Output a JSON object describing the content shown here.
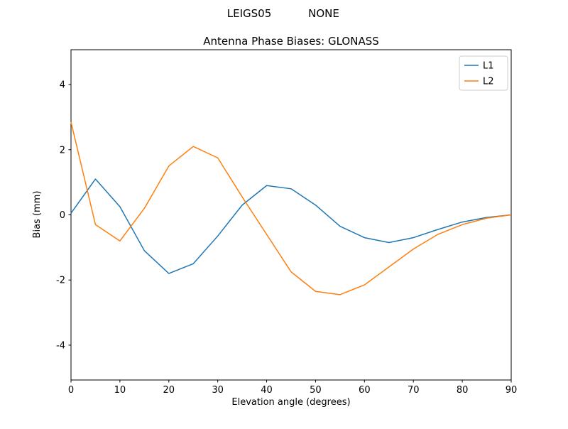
{
  "chart_data": {
    "type": "line",
    "suptitle_left": "LEIGS05",
    "suptitle_right": "NONE",
    "title": "Antenna Phase Biases: GLONASS",
    "xlabel": "Elevation angle (degrees)",
    "ylabel": "Bias (mm)",
    "xlim": [
      0,
      90
    ],
    "ylim": [
      -5.07,
      5.07
    ],
    "xticks": [
      0,
      10,
      20,
      30,
      40,
      50,
      60,
      70,
      80,
      90
    ],
    "yticks": [
      -4,
      -2,
      0,
      2,
      4
    ],
    "grid": false,
    "legend_position": "upper right",
    "x": [
      0,
      5,
      10,
      15,
      20,
      25,
      30,
      35,
      40,
      45,
      50,
      55,
      60,
      65,
      70,
      75,
      80,
      85,
      90
    ],
    "series": [
      {
        "name": "L1",
        "color": "#1f77b4",
        "values": [
          0.05,
          1.1,
          0.25,
          -1.1,
          -1.8,
          -1.5,
          -0.65,
          0.3,
          0.9,
          0.8,
          0.3,
          -0.35,
          -0.7,
          -0.85,
          -0.7,
          -0.45,
          -0.22,
          -0.08,
          0.0
        ]
      },
      {
        "name": "L2",
        "color": "#ff7f0e",
        "values": [
          2.85,
          -0.3,
          -0.8,
          0.2,
          1.5,
          2.1,
          1.75,
          0.55,
          -0.6,
          -1.75,
          -2.35,
          -2.45,
          -2.15,
          -1.6,
          -1.05,
          -0.6,
          -0.3,
          -0.1,
          0.0
        ]
      }
    ]
  },
  "colors": {
    "axis": "#000000",
    "legend_border": "#cccccc",
    "background": "#ffffff"
  }
}
